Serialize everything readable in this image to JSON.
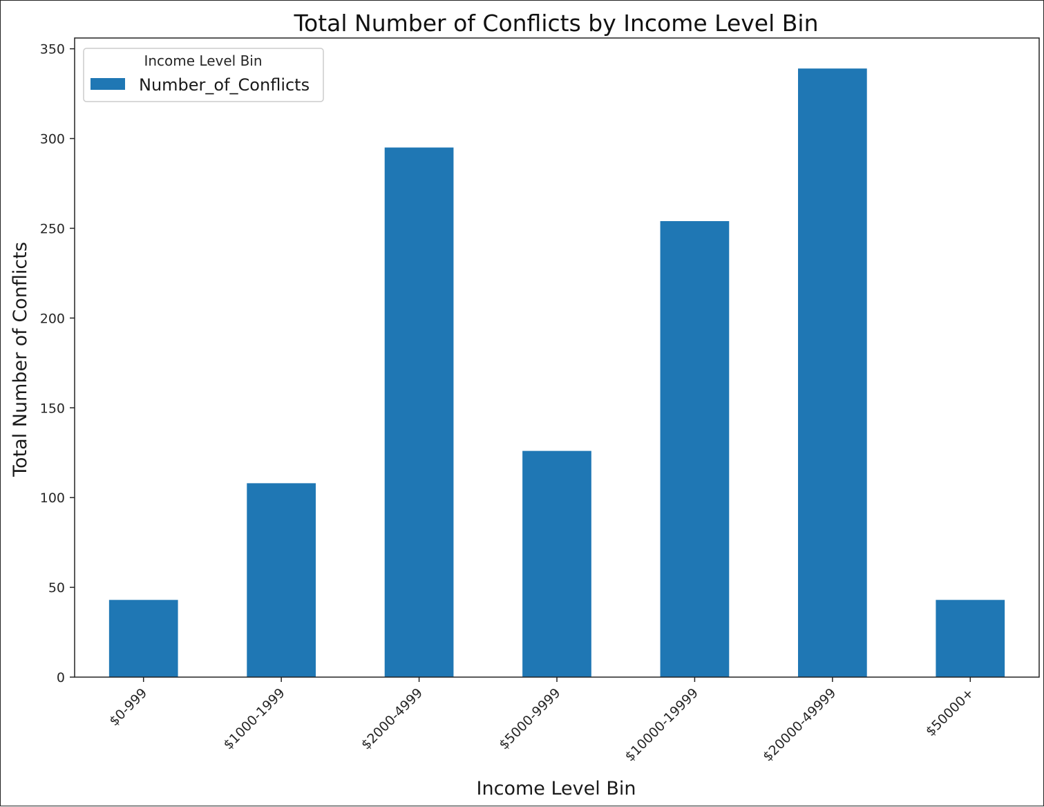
{
  "chart_data": {
    "type": "bar",
    "title": "Total Number of Conflicts by Income Level Bin",
    "xlabel": "Income Level Bin",
    "ylabel": "Total Number of Conflicts",
    "categories": [
      "$0-999",
      "$1000-1999",
      "$2000-4999",
      "$5000-9999",
      "$10000-19999",
      "$20000-49999",
      "$50000+"
    ],
    "series": [
      {
        "name": "Number_of_Conflicts",
        "color": "#1f77b4",
        "values": [
          43,
          108,
          295,
          126,
          254,
          339,
          43
        ]
      }
    ],
    "ylim": [
      0,
      356
    ],
    "yticks": [
      0,
      50,
      100,
      150,
      200,
      250,
      300,
      350
    ],
    "grid": false,
    "legend": {
      "title": "Income Level Bin",
      "placement": "top-left"
    },
    "tick_label_rotation": 45
  }
}
